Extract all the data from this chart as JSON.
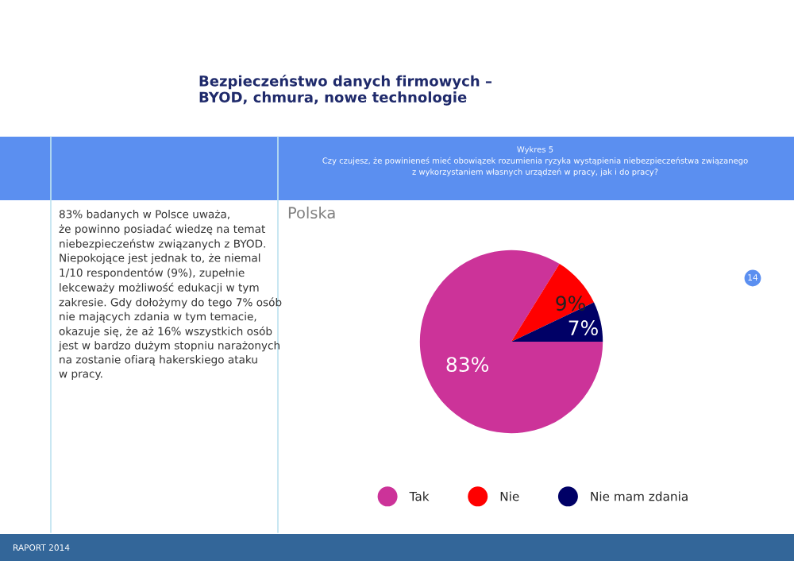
{
  "chart_data": {
    "type": "pie",
    "title": "Bezpieczeństwo danych firmowych –\nBYOD, chmura, nowe technologie",
    "subtitle": "Wykres 5\nCzy czujesz, że powinieneś mieć obowiązek rozumienia ryzyka wystąpienia niebezpieczeństwa związanego\nz wykorzystaniem własnych urządzeń w pracy, jak i do pracy?",
    "categories": [
      "Tak",
      "Nie",
      "Nie mam zdania"
    ],
    "values": [
      83,
      9,
      7
    ],
    "value_labels": [
      "83%",
      "9%",
      "7%"
    ],
    "colors": [
      "#cc3399",
      "#ff0000",
      "#000066"
    ],
    "legend": "bottom",
    "annotations": [
      "Polska",
      "83% badanych w Polsce uważa,\nże powinno posiadać wiedzę na temat\nniebezpieczeństw związanych z BYOD.\nNiepokojące jest jednak to, że niemal\n1/10 respondentów (9%), zupełnie\nlekceważy możliwość edukacji w tym\nzakresie. Gdy dołożymy do tego 7% osób\nnie mających zdania w tym temacie,\nokazuje się, że aż 16% wszystkich osób\njest w bardzo dużym stopniu narażonych\nna zostanie ofiarą hakerskiego ataku\nw pracy.",
      "RAPORT 2014",
      "14"
    ]
  }
}
